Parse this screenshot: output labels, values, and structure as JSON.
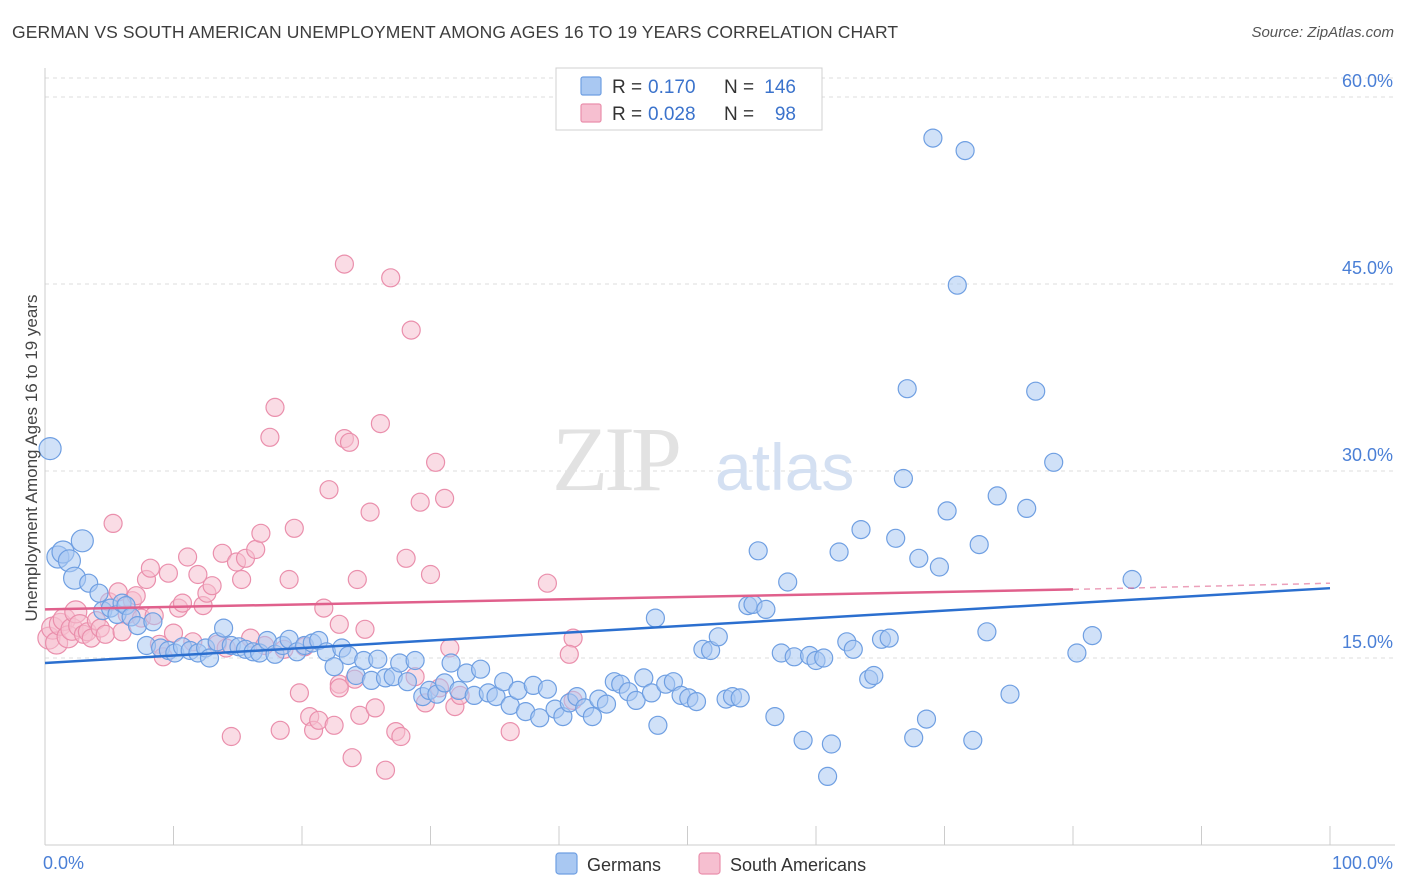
{
  "title": "GERMAN VS SOUTH AMERICAN UNEMPLOYMENT AMONG AGES 16 TO 19 YEARS CORRELATION CHART",
  "source": "Source: ZipAtlas.com",
  "watermark": {
    "zip": "ZIP",
    "atlas": "atlas"
  },
  "colors": {
    "blue_fill": "#a9c8f2",
    "blue_stroke": "#6f9fe2",
    "blue_line": "#2b6fcf",
    "pink_fill": "#f6bfd0",
    "pink_stroke": "#ea8fac",
    "pink_line": "#e0608c",
    "grid": "#dddddd",
    "tick_label": "#4a7fd6"
  },
  "chart_data": {
    "type": "scatter",
    "ylabel": "Unemployment Among Ages 16 to 19 years",
    "xlim": [
      0,
      100
    ],
    "ylim": [
      0,
      63
    ],
    "x_tick_labels": {
      "left": "0.0%",
      "right": "100.0%"
    },
    "y_ticks": [
      {
        "value": 15,
        "label": "15.0%"
      },
      {
        "value": 30,
        "label": "30.0%"
      },
      {
        "value": 45,
        "label": "45.0%"
      },
      {
        "value": 60,
        "label": "60.0%"
      }
    ],
    "grid": true,
    "legend_top": [
      {
        "series": "Germans",
        "r_label": "R =",
        "r_value": "0.170",
        "n_label": "N =",
        "n_value": "146"
      },
      {
        "series": "South Americans",
        "r_label": "R =",
        "r_value": "0.028",
        "n_label": "N =",
        "n_value": "98"
      }
    ],
    "series": [
      {
        "name": "Germans",
        "trend": {
          "x0": 0,
          "y0": 14.6,
          "x1": 100,
          "y1": 20.6
        },
        "points": [
          [
            0.4,
            31.8
          ],
          [
            1.0,
            23.1
          ],
          [
            1.4,
            23.5
          ],
          [
            1.9,
            22.8
          ],
          [
            2.3,
            21.4
          ],
          [
            2.9,
            24.4
          ],
          [
            3.4,
            21.0
          ],
          [
            4.2,
            20.2
          ],
          [
            4.5,
            18.8
          ],
          [
            5.1,
            19.0
          ],
          [
            5.6,
            18.5
          ],
          [
            6.0,
            19.4
          ],
          [
            6.3,
            19.2
          ],
          [
            6.7,
            18.3
          ],
          [
            7.2,
            17.6
          ],
          [
            7.9,
            16.0
          ],
          [
            8.4,
            17.9
          ],
          [
            9.0,
            15.8
          ],
          [
            9.6,
            15.6
          ],
          [
            10.1,
            15.4
          ],
          [
            10.7,
            15.9
          ],
          [
            11.3,
            15.6
          ],
          [
            11.9,
            15.4
          ],
          [
            12.5,
            15.8
          ],
          [
            12.8,
            15.0
          ],
          [
            13.4,
            16.3
          ],
          [
            13.9,
            17.4
          ],
          [
            14.5,
            16.0
          ],
          [
            15.1,
            15.9
          ],
          [
            15.6,
            15.7
          ],
          [
            16.2,
            15.5
          ],
          [
            16.7,
            15.4
          ],
          [
            17.3,
            16.4
          ],
          [
            17.9,
            15.3
          ],
          [
            18.5,
            16.0
          ],
          [
            19.0,
            16.5
          ],
          [
            19.6,
            15.5
          ],
          [
            20.2,
            16.0
          ],
          [
            20.8,
            16.2
          ],
          [
            21.3,
            16.4
          ],
          [
            21.9,
            15.5
          ],
          [
            22.5,
            14.3
          ],
          [
            23.1,
            15.8
          ],
          [
            23.6,
            15.2
          ],
          [
            24.2,
            13.6
          ],
          [
            24.8,
            14.8
          ],
          [
            25.4,
            13.2
          ],
          [
            25.9,
            14.9
          ],
          [
            26.5,
            13.4
          ],
          [
            27.1,
            13.5
          ],
          [
            27.6,
            14.6
          ],
          [
            28.2,
            13.1
          ],
          [
            28.8,
            14.8
          ],
          [
            29.4,
            11.9
          ],
          [
            29.9,
            12.4
          ],
          [
            30.5,
            12.1
          ],
          [
            31.1,
            13.0
          ],
          [
            31.6,
            14.6
          ],
          [
            32.2,
            12.4
          ],
          [
            32.8,
            13.8
          ],
          [
            33.4,
            12.0
          ],
          [
            33.9,
            14.1
          ],
          [
            34.5,
            12.2
          ],
          [
            35.1,
            11.9
          ],
          [
            35.7,
            13.1
          ],
          [
            36.2,
            11.2
          ],
          [
            36.8,
            12.4
          ],
          [
            37.4,
            10.7
          ],
          [
            38.0,
            12.8
          ],
          [
            38.5,
            10.2
          ],
          [
            39.1,
            12.5
          ],
          [
            39.7,
            10.9
          ],
          [
            40.3,
            10.3
          ],
          [
            40.8,
            11.4
          ],
          [
            41.4,
            11.9
          ],
          [
            42.0,
            11.0
          ],
          [
            42.6,
            10.3
          ],
          [
            43.1,
            11.7
          ],
          [
            43.7,
            11.3
          ],
          [
            44.3,
            13.1
          ],
          [
            44.8,
            12.9
          ],
          [
            45.4,
            12.3
          ],
          [
            46.0,
            11.6
          ],
          [
            46.6,
            13.4
          ],
          [
            47.2,
            12.2
          ],
          [
            47.7,
            9.6
          ],
          [
            48.3,
            12.9
          ],
          [
            48.9,
            13.1
          ],
          [
            49.5,
            12.0
          ],
          [
            50.1,
            11.8
          ],
          [
            50.7,
            11.5
          ],
          [
            51.2,
            15.7
          ],
          [
            51.8,
            15.6
          ],
          [
            52.4,
            16.7
          ],
          [
            53.0,
            11.7
          ],
          [
            53.5,
            11.9
          ],
          [
            54.1,
            11.8
          ],
          [
            54.7,
            19.2
          ],
          [
            55.1,
            19.3
          ],
          [
            55.5,
            23.6
          ],
          [
            56.1,
            18.9
          ],
          [
            56.8,
            10.3
          ],
          [
            57.3,
            15.4
          ],
          [
            57.8,
            21.1
          ],
          [
            58.3,
            15.1
          ],
          [
            59.0,
            8.4
          ],
          [
            59.5,
            15.2
          ],
          [
            60.0,
            14.8
          ],
          [
            60.6,
            15.0
          ],
          [
            61.2,
            8.1
          ],
          [
            61.8,
            23.5
          ],
          [
            62.4,
            16.3
          ],
          [
            62.9,
            15.7
          ],
          [
            63.5,
            25.3
          ],
          [
            64.1,
            13.3
          ],
          [
            64.5,
            13.6
          ],
          [
            65.1,
            16.5
          ],
          [
            65.7,
            16.6
          ],
          [
            66.2,
            24.6
          ],
          [
            66.8,
            29.4
          ],
          [
            67.1,
            36.6
          ],
          [
            67.6,
            8.6
          ],
          [
            68.0,
            23.0
          ],
          [
            68.6,
            10.1
          ],
          [
            69.1,
            56.7
          ],
          [
            69.6,
            22.3
          ],
          [
            70.2,
            26.8
          ],
          [
            71.0,
            44.9
          ],
          [
            71.6,
            55.7
          ],
          [
            72.2,
            8.4
          ],
          [
            72.7,
            24.1
          ],
          [
            73.3,
            17.1
          ],
          [
            74.1,
            28.0
          ],
          [
            75.1,
            12.1
          ],
          [
            76.4,
            27.0
          ],
          [
            77.1,
            36.4
          ],
          [
            78.5,
            30.7
          ],
          [
            80.3,
            15.4
          ],
          [
            81.5,
            16.8
          ],
          [
            84.6,
            21.3
          ],
          [
            47.5,
            18.2
          ],
          [
            60.9,
            5.5
          ]
        ]
      },
      {
        "name": "South Americans",
        "trend": {
          "x0": 0,
          "y0": 18.9,
          "x1": 80,
          "y1": 20.5
        },
        "dashed_extension": {
          "x0": 80,
          "y0": 20.5,
          "x1": 100,
          "y1": 21.0
        },
        "points": [
          [
            0.3,
            16.6
          ],
          [
            0.6,
            17.4
          ],
          [
            0.9,
            16.2
          ],
          [
            1.2,
            17.7
          ],
          [
            1.5,
            18.1
          ],
          [
            1.8,
            16.7
          ],
          [
            2.1,
            17.3
          ],
          [
            2.4,
            18.7
          ],
          [
            2.7,
            17.6
          ],
          [
            3.0,
            16.9
          ],
          [
            3.3,
            17.1
          ],
          [
            3.6,
            16.6
          ],
          [
            4.0,
            18.0
          ],
          [
            4.3,
            17.4
          ],
          [
            4.7,
            16.9
          ],
          [
            5.0,
            19.5
          ],
          [
            5.3,
            25.8
          ],
          [
            5.7,
            20.3
          ],
          [
            6.0,
            17.1
          ],
          [
            6.4,
            18.5
          ],
          [
            6.8,
            19.6
          ],
          [
            7.1,
            20.0
          ],
          [
            7.5,
            18.2
          ],
          [
            7.9,
            21.3
          ],
          [
            8.2,
            22.2
          ],
          [
            8.5,
            18.4
          ],
          [
            8.9,
            16.1
          ],
          [
            9.2,
            15.1
          ],
          [
            9.6,
            21.8
          ],
          [
            10.0,
            17.0
          ],
          [
            10.4,
            19.0
          ],
          [
            10.7,
            19.4
          ],
          [
            11.1,
            23.1
          ],
          [
            11.5,
            16.3
          ],
          [
            11.9,
            21.7
          ],
          [
            12.3,
            19.2
          ],
          [
            12.6,
            20.2
          ],
          [
            13.0,
            20.8
          ],
          [
            13.4,
            16.1
          ],
          [
            13.8,
            23.4
          ],
          [
            14.1,
            15.8
          ],
          [
            14.5,
            8.7
          ],
          [
            14.9,
            22.7
          ],
          [
            15.3,
            21.3
          ],
          [
            15.6,
            23.0
          ],
          [
            16.0,
            16.6
          ],
          [
            16.4,
            23.7
          ],
          [
            16.8,
            25.0
          ],
          [
            17.1,
            16.0
          ],
          [
            17.5,
            32.7
          ],
          [
            17.9,
            35.1
          ],
          [
            18.3,
            9.2
          ],
          [
            18.6,
            15.7
          ],
          [
            19.0,
            21.3
          ],
          [
            19.4,
            25.4
          ],
          [
            19.8,
            12.2
          ],
          [
            20.2,
            15.9
          ],
          [
            20.6,
            10.3
          ],
          [
            20.9,
            9.2
          ],
          [
            21.3,
            10.0
          ],
          [
            21.7,
            19.0
          ],
          [
            22.1,
            28.5
          ],
          [
            22.5,
            9.6
          ],
          [
            22.9,
            12.9
          ],
          [
            23.3,
            32.6
          ],
          [
            23.7,
            32.3
          ],
          [
            24.1,
            13.3
          ],
          [
            24.5,
            10.4
          ],
          [
            24.9,
            17.3
          ],
          [
            22.9,
            12.6
          ],
          [
            22.9,
            17.7
          ],
          [
            23.3,
            46.6
          ],
          [
            23.9,
            7.0
          ],
          [
            24.3,
            21.3
          ],
          [
            25.3,
            26.7
          ],
          [
            25.7,
            11.0
          ],
          [
            26.1,
            33.8
          ],
          [
            26.5,
            6.0
          ],
          [
            26.9,
            45.5
          ],
          [
            27.3,
            9.1
          ],
          [
            27.7,
            8.7
          ],
          [
            28.1,
            23.0
          ],
          [
            28.5,
            41.3
          ],
          [
            28.8,
            13.5
          ],
          [
            29.2,
            27.5
          ],
          [
            29.6,
            11.4
          ],
          [
            30.0,
            21.7
          ],
          [
            30.4,
            30.7
          ],
          [
            30.7,
            12.6
          ],
          [
            31.1,
            27.8
          ],
          [
            31.5,
            15.8
          ],
          [
            31.9,
            11.1
          ],
          [
            32.3,
            12.0
          ],
          [
            36.2,
            9.1
          ],
          [
            39.1,
            21.0
          ],
          [
            41.1,
            11.6
          ],
          [
            41.1,
            16.6
          ],
          [
            40.8,
            15.3
          ]
        ]
      }
    ],
    "bottom_legend": [
      {
        "series": "Germans"
      },
      {
        "series": "South Americans"
      }
    ]
  }
}
